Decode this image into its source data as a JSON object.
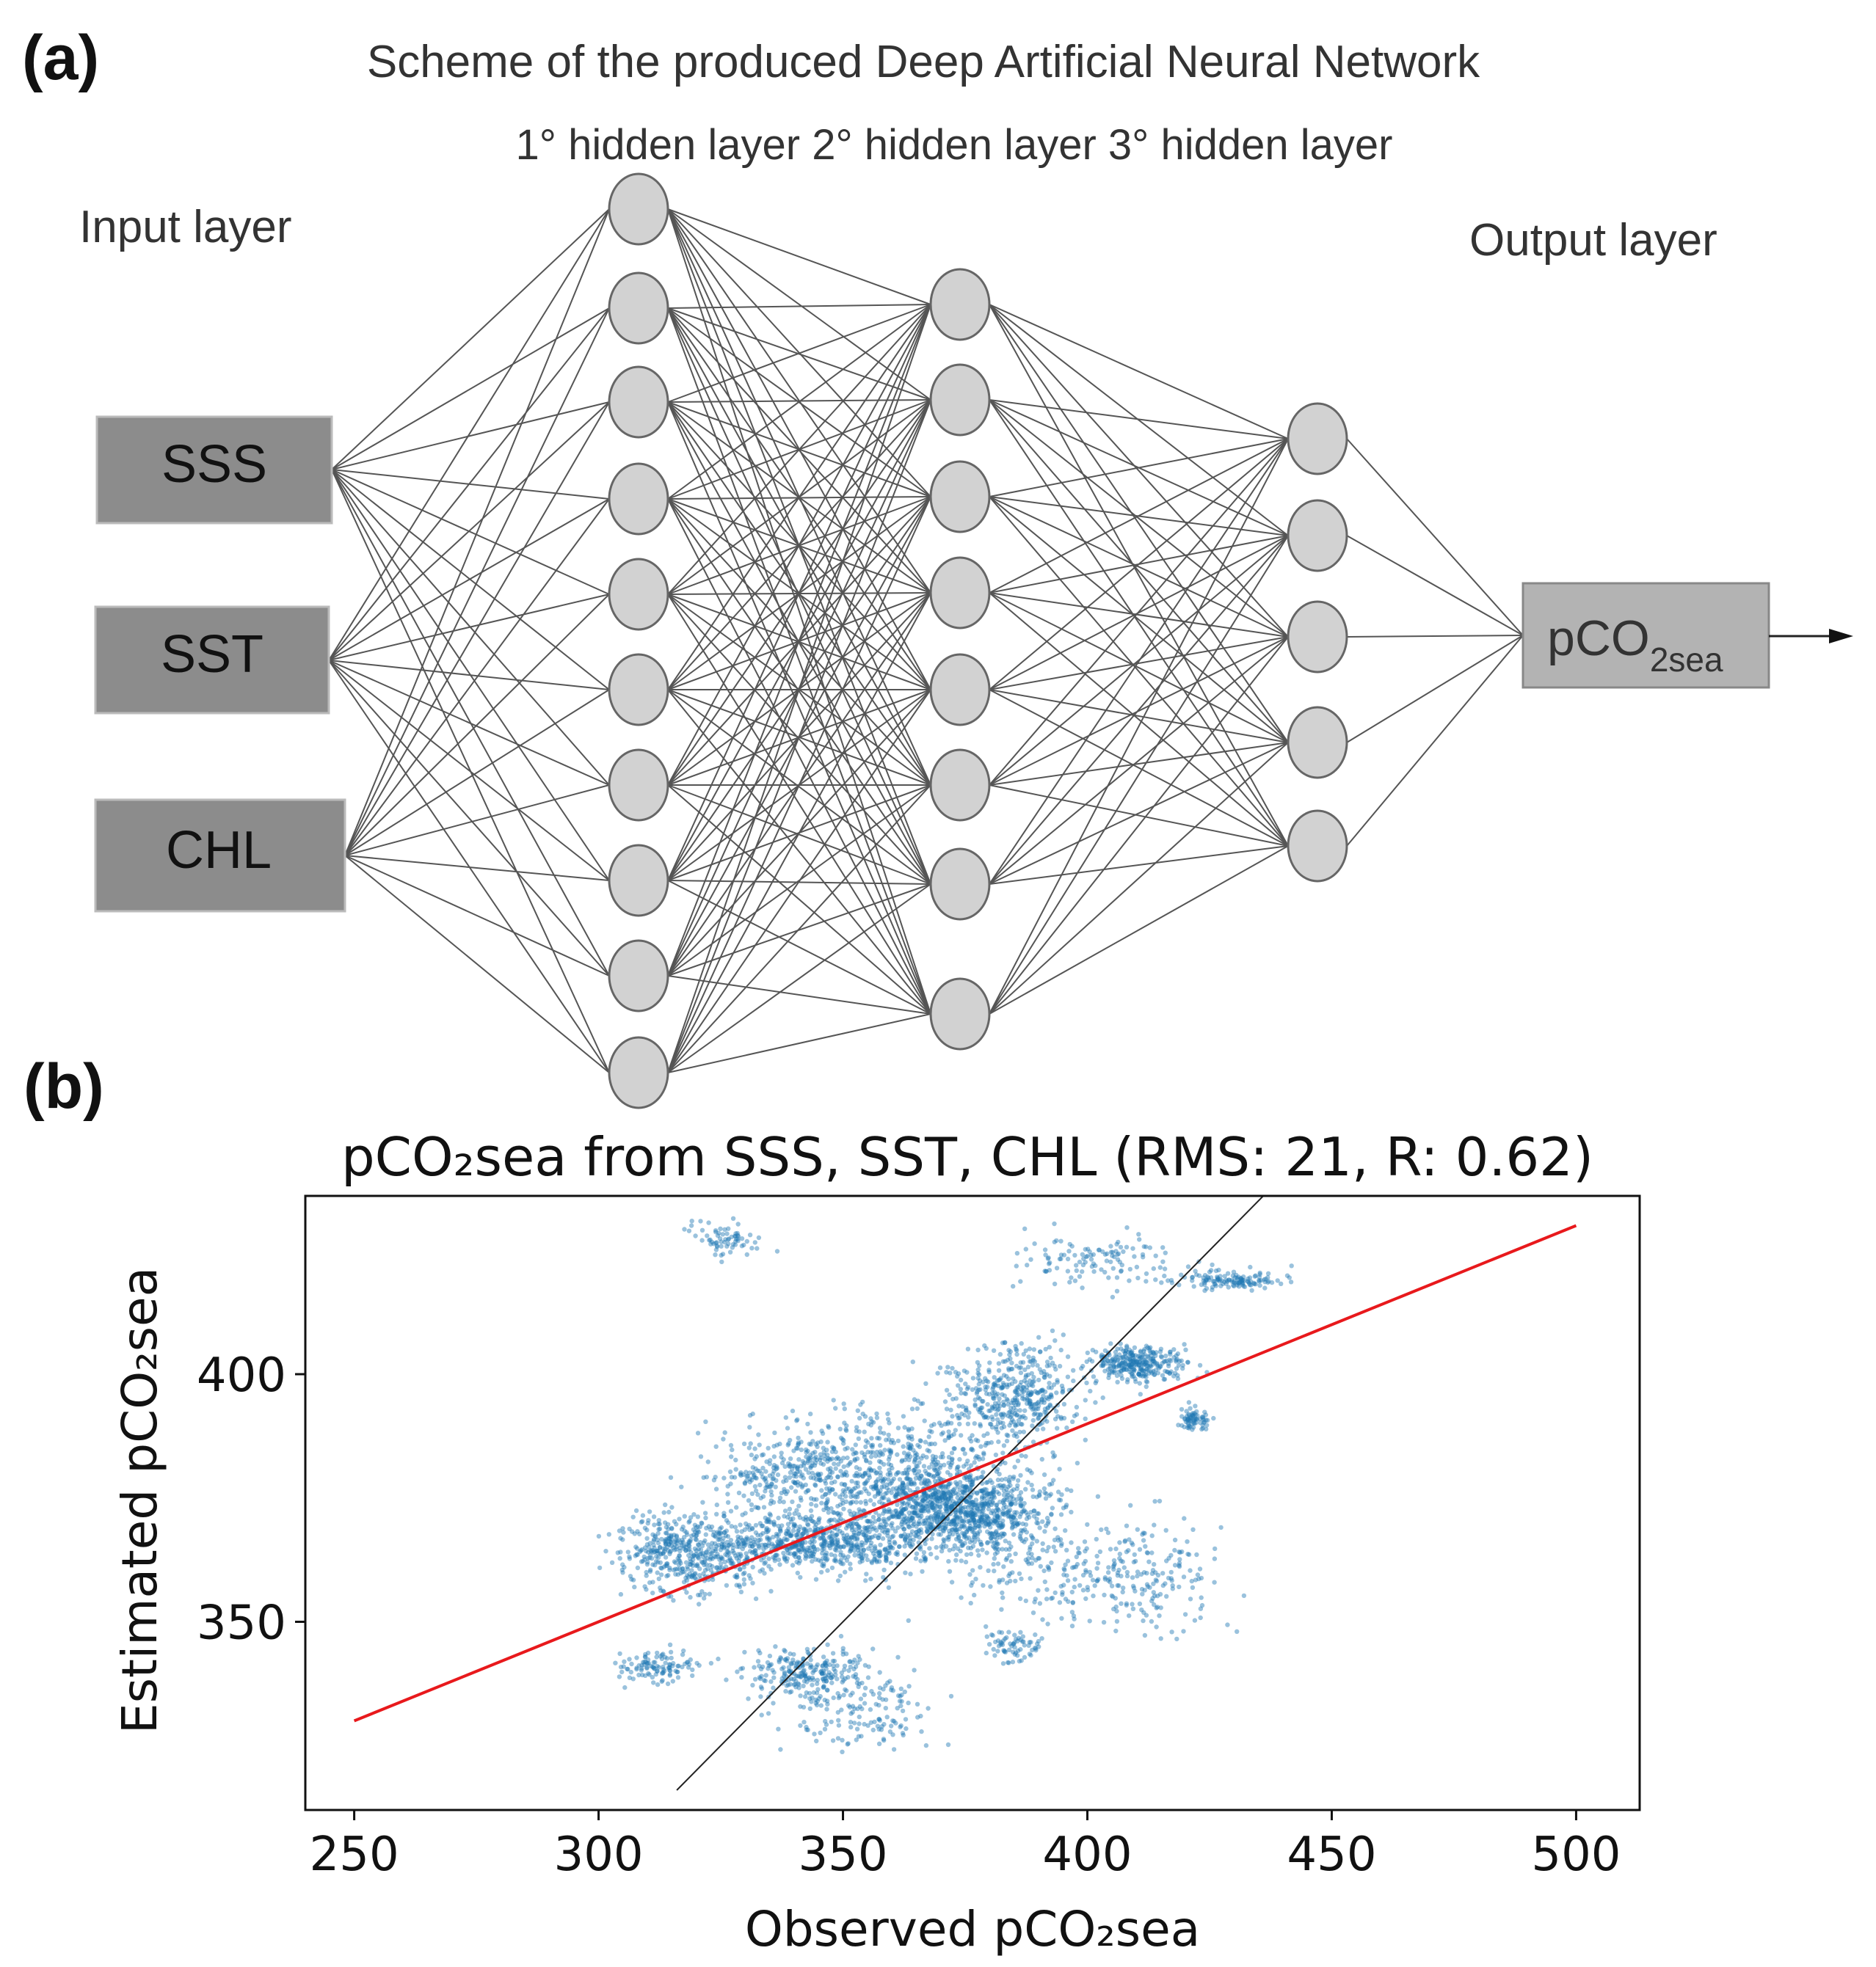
{
  "panel_a": {
    "label": "(a)",
    "title": "Scheme of the produced Deep Artificial Neural Network",
    "hidden_headers": "1° hidden layer 2° hidden layer  3° hidden layer",
    "input_layer_label": "Input layer",
    "output_layer_label": "Output layer",
    "inputs": [
      "SSS",
      "SST",
      "CHL"
    ],
    "output_main": "pCO",
    "output_sub": "2sea",
    "layer_sizes": [
      10,
      8,
      5
    ],
    "colors": {
      "box": "#8c8c8c",
      "node": "#d2d2d2",
      "edge": "#555555",
      "output_box": "#b3b3b3"
    }
  },
  "panel_b": {
    "label": "(b)",
    "title": "pCO₂sea from SSS, SST, CHL (RMS: 21, R: 0.62)",
    "xlabel": "Observed pCO₂sea",
    "ylabel": "Estimated pCO₂sea"
  },
  "chart_data": {
    "type": "scatter",
    "title": "pCO₂sea from SSS, SST, CHL (RMS: 21, R: 0.62)",
    "xlabel": "Observed pCO₂sea",
    "ylabel": "Estimated pCO₂sea",
    "xlim": [
      240,
      513
    ],
    "ylim": [
      312,
      436
    ],
    "xticks": [
      250,
      300,
      350,
      400,
      450,
      500
    ],
    "yticks": [
      350,
      400
    ],
    "rms": 21,
    "r": 0.62,
    "regression_line": {
      "x": [
        250,
        500
      ],
      "y": [
        330,
        430
      ],
      "color": "#e8191c"
    },
    "identity_line": {
      "x": [
        316,
        440
      ],
      "y": [
        316,
        440
      ],
      "color": "#222222"
    },
    "point_color": "#1f77b4",
    "point_clusters": [
      {
        "cx": 375,
        "cy": 372,
        "sx": 17,
        "sy": 7,
        "n": 900
      },
      {
        "cx": 345,
        "cy": 366,
        "sx": 20,
        "sy": 5,
        "n": 650
      },
      {
        "cx": 318,
        "cy": 364,
        "sx": 12,
        "sy": 7,
        "n": 450
      },
      {
        "cx": 385,
        "cy": 396,
        "sx": 12,
        "sy": 9,
        "n": 450
      },
      {
        "cx": 410,
        "cy": 402,
        "sx": 9,
        "sy": 3,
        "n": 300
      },
      {
        "cx": 422,
        "cy": 391,
        "sx": 3,
        "sy": 2,
        "n": 70
      },
      {
        "cx": 430,
        "cy": 419,
        "sx": 11,
        "sy": 1.5,
        "n": 130
      },
      {
        "cx": 402,
        "cy": 423,
        "sx": 14,
        "sy": 5,
        "n": 120
      },
      {
        "cx": 342,
        "cy": 340,
        "sx": 9,
        "sy": 4,
        "n": 220
      },
      {
        "cx": 312,
        "cy": 341,
        "sx": 7,
        "sy": 3,
        "n": 110
      },
      {
        "cx": 360,
        "cy": 380,
        "sx": 20,
        "sy": 11,
        "n": 650
      },
      {
        "cx": 338,
        "cy": 380,
        "sx": 14,
        "sy": 6,
        "n": 250
      },
      {
        "cx": 326,
        "cy": 427,
        "sx": 6,
        "sy": 3,
        "n": 70
      },
      {
        "cx": 385,
        "cy": 345,
        "sx": 5,
        "sy": 3,
        "n": 70
      },
      {
        "cx": 352,
        "cy": 332,
        "sx": 14,
        "sy": 8,
        "n": 160
      },
      {
        "cx": 415,
        "cy": 360,
        "sx": 12,
        "sy": 12,
        "n": 130
      },
      {
        "cx": 395,
        "cy": 360,
        "sx": 20,
        "sy": 8,
        "n": 200
      }
    ]
  }
}
